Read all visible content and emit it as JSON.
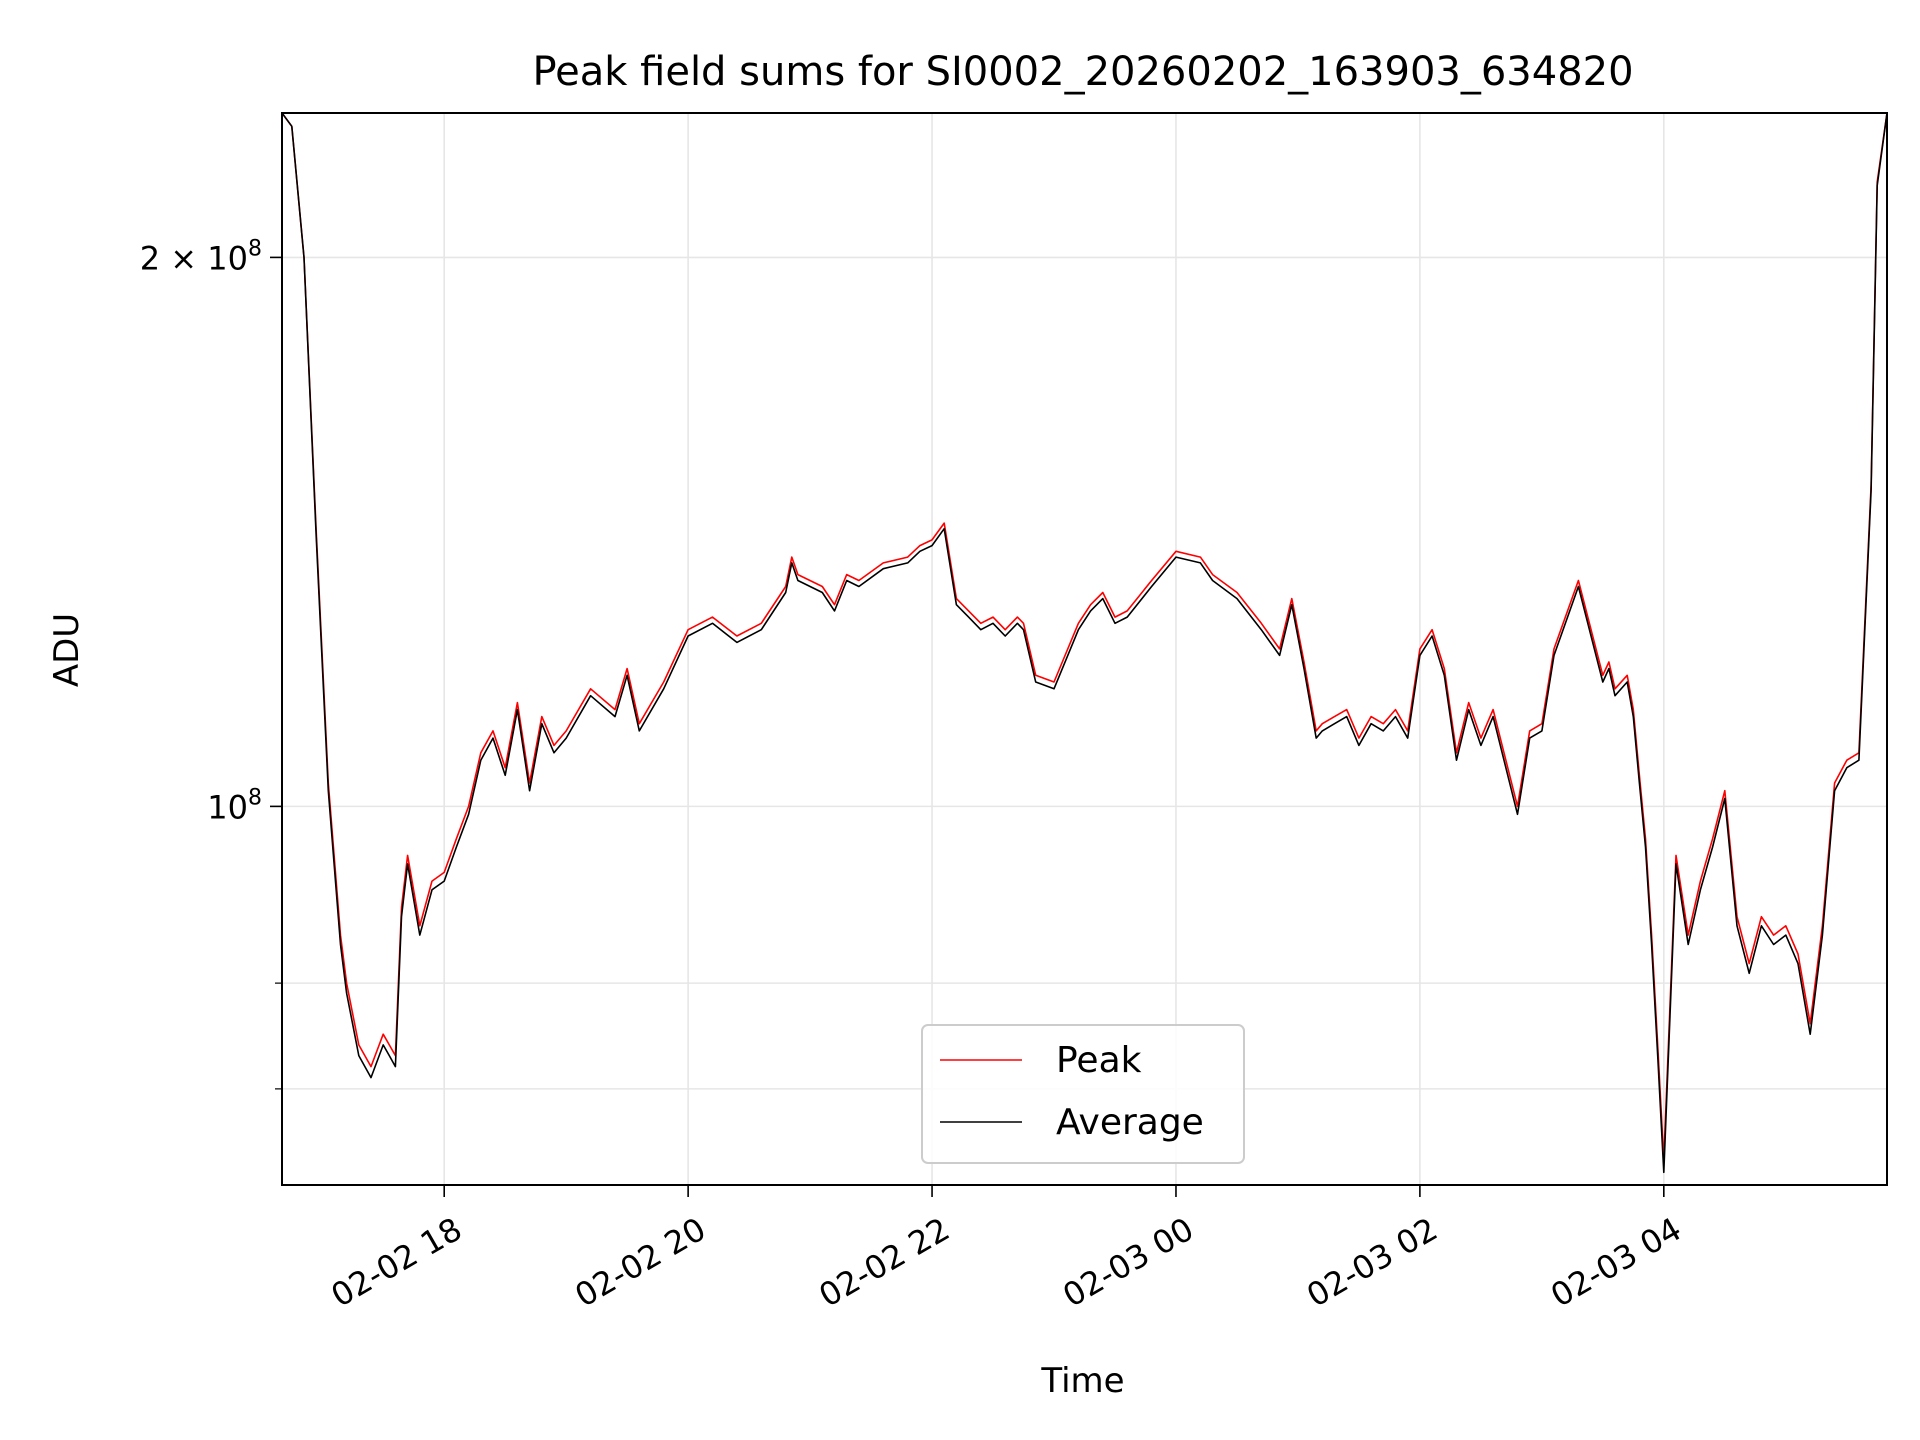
{
  "chart_data": {
    "type": "line",
    "title": "Peak field sums for SI0002_20260202_163903_634820",
    "xlabel": "Time",
    "ylabel": "ADU",
    "yscale": "log",
    "ylim": [
      62000000,
      240000000
    ],
    "xlim_hours": [
      16.67,
      29.83
    ],
    "grid": true,
    "legend_position": "lower center",
    "x_ticks": [
      {
        "hour": 18,
        "label": "02-02 18"
      },
      {
        "hour": 20,
        "label": "02-02 20"
      },
      {
        "hour": 22,
        "label": "02-02 22"
      },
      {
        "hour": 24,
        "label": "02-03 00"
      },
      {
        "hour": 26,
        "label": "02-03 02"
      },
      {
        "hour": 28,
        "label": "02-03 04"
      }
    ],
    "y_major_ticks": [
      {
        "value": 200000000,
        "mantissa": "2",
        "times": "×",
        "base": "10",
        "exponent": "8"
      },
      {
        "value": 100000000,
        "mantissa": "",
        "times": "",
        "base": "10",
        "exponent": "8"
      }
    ],
    "y_minor_ticks": [
      70000000,
      80000000
    ],
    "x_hours": [
      16.67,
      16.75,
      16.85,
      16.95,
      17.05,
      17.15,
      17.2,
      17.3,
      17.4,
      17.5,
      17.55,
      17.6,
      17.65,
      17.7,
      17.8,
      17.9,
      18.0,
      18.1,
      18.2,
      18.3,
      18.4,
      18.5,
      18.6,
      18.7,
      18.8,
      18.9,
      19.0,
      19.2,
      19.4,
      19.5,
      19.6,
      19.8,
      20.0,
      20.2,
      20.4,
      20.6,
      20.8,
      20.85,
      20.9,
      21.1,
      21.2,
      21.3,
      21.4,
      21.6,
      21.8,
      21.9,
      22.0,
      22.1,
      22.2,
      22.3,
      22.4,
      22.5,
      22.6,
      22.7,
      22.75,
      22.85,
      23.0,
      23.2,
      23.3,
      23.4,
      23.5,
      23.6,
      23.8,
      24.0,
      24.2,
      24.3,
      24.5,
      24.7,
      24.85,
      24.95,
      25.05,
      25.15,
      25.2,
      25.3,
      25.4,
      25.5,
      25.6,
      25.7,
      25.8,
      25.9,
      26.0,
      26.1,
      26.2,
      26.3,
      26.4,
      26.5,
      26.6,
      26.8,
      26.9,
      27.0,
      27.1,
      27.3,
      27.5,
      27.55,
      27.6,
      27.7,
      27.75,
      27.8,
      27.85,
      27.9,
      27.95,
      28.0,
      28.1,
      28.2,
      28.3,
      28.4,
      28.5,
      28.6,
      28.7,
      28.8,
      28.9,
      29.0,
      29.1,
      29.2,
      29.3,
      29.4,
      29.5,
      29.6,
      29.7,
      29.75,
      29.83
    ],
    "series": [
      {
        "name": "Peak",
        "color": "#ff0000",
        "values": [
          240000000,
          236000000,
          200000000,
          142000000,
          103000000,
          85000000,
          80000000,
          74000000,
          72000000,
          75000000,
          74000000,
          73000000,
          88000000,
          94000000,
          86000000,
          91000000,
          92000000,
          96000000,
          100000000,
          107000000,
          110000000,
          105000000,
          114000000,
          103000000,
          112000000,
          108000000,
          110000000,
          116000000,
          113000000,
          119000000,
          111000000,
          117000000,
          125000000,
          127000000,
          124000000,
          126000000,
          132000000,
          137000000,
          134000000,
          132000000,
          129000000,
          134000000,
          133000000,
          136000000,
          137000000,
          139000000,
          140000000,
          143000000,
          130000000,
          128000000,
          126000000,
          127000000,
          125000000,
          127000000,
          126000000,
          118000000,
          117000000,
          126000000,
          129000000,
          131000000,
          127000000,
          128000000,
          133000000,
          138000000,
          137000000,
          134000000,
          131000000,
          126000000,
          122000000,
          130000000,
          120000000,
          110000000,
          111000000,
          112000000,
          113000000,
          109000000,
          112000000,
          111000000,
          113000000,
          110000000,
          122000000,
          125000000,
          119000000,
          107000000,
          114000000,
          109000000,
          113000000,
          100000000,
          110000000,
          111000000,
          122000000,
          133000000,
          118000000,
          120000000,
          116000000,
          118000000,
          113000000,
          104000000,
          96000000,
          85000000,
          74000000,
          64000000,
          94000000,
          85000000,
          91000000,
          96000000,
          102000000,
          87000000,
          82000000,
          87000000,
          85000000,
          86000000,
          83000000,
          76000000,
          86000000,
          103000000,
          106000000,
          107000000,
          150000000,
          220000000,
          240000000
        ]
      },
      {
        "name": "Average",
        "color": "#000000",
        "values": [
          240000000,
          236000000,
          200000000,
          141000000,
          102000000,
          84000000,
          79000000,
          73000000,
          71000000,
          74000000,
          73000000,
          72000000,
          87000000,
          93000000,
          85000000,
          90000000,
          91000000,
          95000000,
          99000000,
          106000000,
          109000000,
          104000000,
          113000000,
          102000000,
          111000000,
          107000000,
          109000000,
          115000000,
          112000000,
          118000000,
          110000000,
          116000000,
          124000000,
          126000000,
          123000000,
          125000000,
          131000000,
          136000000,
          133000000,
          131000000,
          128000000,
          133000000,
          132000000,
          135000000,
          136000000,
          138000000,
          139000000,
          142000000,
          129000000,
          127000000,
          125000000,
          126000000,
          124000000,
          126000000,
          125000000,
          117000000,
          116000000,
          125000000,
          128000000,
          130000000,
          126000000,
          127000000,
          132000000,
          137000000,
          136000000,
          133000000,
          130000000,
          125000000,
          121000000,
          129000000,
          119000000,
          109000000,
          110000000,
          111000000,
          112000000,
          108000000,
          111000000,
          110000000,
          112000000,
          109000000,
          121000000,
          124000000,
          118000000,
          106000000,
          113000000,
          108000000,
          112000000,
          99000000,
          109000000,
          110000000,
          121000000,
          132000000,
          117000000,
          119000000,
          115000000,
          117000000,
          112000000,
          103000000,
          95000000,
          84000000,
          73000000,
          63000000,
          93000000,
          84000000,
          90000000,
          95000000,
          101000000,
          86000000,
          81000000,
          86000000,
          84000000,
          85000000,
          82000000,
          75000000,
          85000000,
          102000000,
          105000000,
          106000000,
          149000000,
          219000000,
          240000000
        ]
      }
    ]
  }
}
